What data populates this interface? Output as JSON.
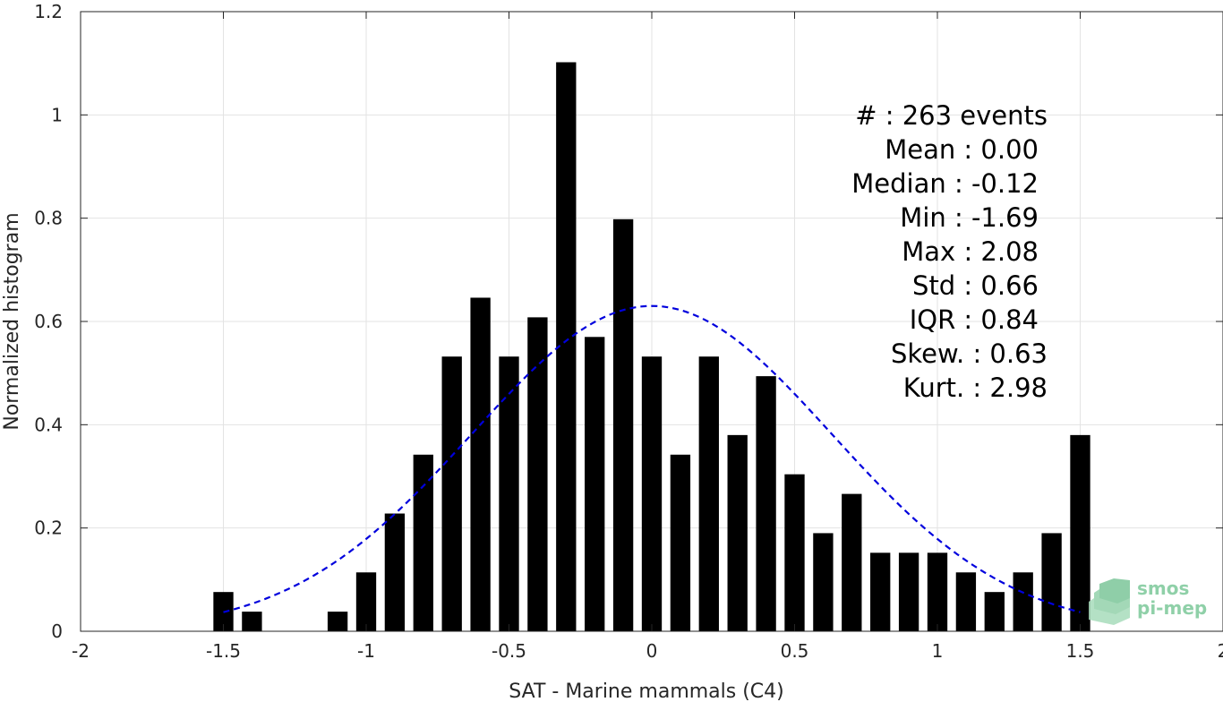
{
  "chart_data": {
    "type": "bar",
    "xlabel": "SAT - Marine mammals (C4)",
    "ylabel": "Normalized histogram",
    "xlim": [
      -2,
      2
    ],
    "ylim": [
      0,
      1.2
    ],
    "xticks": [
      "-2",
      "-1.5",
      "-1",
      "-0.5",
      "0",
      "0.5",
      "1",
      "1.5",
      "2"
    ],
    "yticks": [
      "0",
      "0.2",
      "0.4",
      "0.6",
      "0.8",
      "1",
      "1.2"
    ],
    "grid": true,
    "bar_width": 0.07,
    "bars": [
      {
        "x": -1.5,
        "value": 0.076
      },
      {
        "x": -1.4,
        "value": 0.038
      },
      {
        "x": -1.1,
        "value": 0.038
      },
      {
        "x": -1.0,
        "value": 0.114
      },
      {
        "x": -0.9,
        "value": 0.228
      },
      {
        "x": -0.8,
        "value": 0.342
      },
      {
        "x": -0.7,
        "value": 0.532
      },
      {
        "x": -0.6,
        "value": 0.646
      },
      {
        "x": -0.5,
        "value": 0.532
      },
      {
        "x": -0.4,
        "value": 0.608
      },
      {
        "x": -0.3,
        "value": 1.102
      },
      {
        "x": -0.2,
        "value": 0.57
      },
      {
        "x": -0.1,
        "value": 0.798
      },
      {
        "x": 0.0,
        "value": 0.532
      },
      {
        "x": 0.1,
        "value": 0.342
      },
      {
        "x": 0.2,
        "value": 0.532
      },
      {
        "x": 0.3,
        "value": 0.38
      },
      {
        "x": 0.4,
        "value": 0.494
      },
      {
        "x": 0.5,
        "value": 0.304
      },
      {
        "x": 0.6,
        "value": 0.19
      },
      {
        "x": 0.7,
        "value": 0.266
      },
      {
        "x": 0.8,
        "value": 0.152
      },
      {
        "x": 0.9,
        "value": 0.152
      },
      {
        "x": 1.0,
        "value": 0.152
      },
      {
        "x": 1.1,
        "value": 0.114
      },
      {
        "x": 1.2,
        "value": 0.076
      },
      {
        "x": 1.3,
        "value": 0.114
      },
      {
        "x": 1.4,
        "value": 0.19
      },
      {
        "x": 1.5,
        "value": 0.38
      }
    ],
    "fit_curve": {
      "type": "gaussian",
      "mean": 0.0,
      "std": 0.63,
      "peak": 0.63,
      "x_range": [
        -1.5,
        1.5
      ],
      "style": "dashed",
      "color": "#0000dd"
    },
    "bar_color": "#000000",
    "stats": [
      "#  : 263 events",
      "Mean : 0.00",
      "Median : -0.12",
      "Min : -1.69",
      "Max : 2.08",
      "Std : 0.66",
      "IQR : 0.84",
      "Skew. : 0.63",
      "Kurt. : 2.98"
    ]
  },
  "logo": {
    "line1": "smos",
    "line2": "pi-mep",
    "color": "#8fd0a8"
  }
}
